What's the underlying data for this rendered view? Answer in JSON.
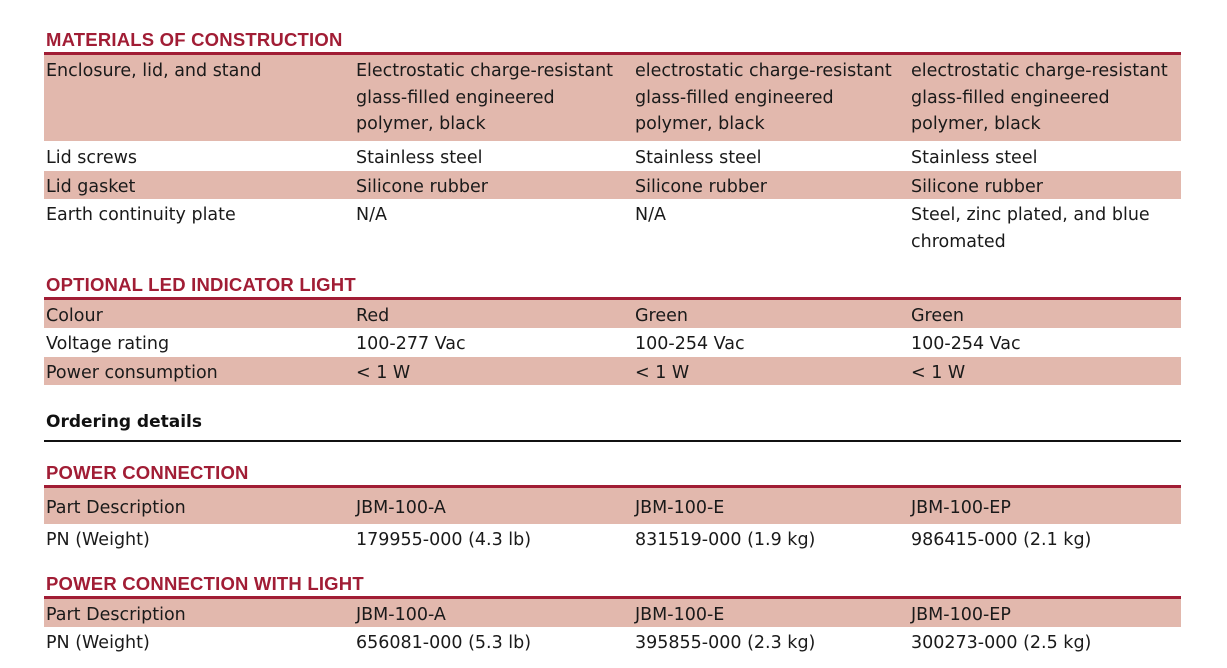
{
  "materials": {
    "title": "MATERIALS OF CONSTRUCTION",
    "rows": [
      {
        "label": "Enclosure, lid, and stand",
        "c1": [
          "Electrostatic charge-resistant",
          "glass-filled engineered",
          "polymer, black"
        ],
        "c2": [
          "electrostatic charge-resistant",
          "glass-filled engineered",
          "polymer, black"
        ],
        "c3": [
          "electrostatic charge-resistant",
          "glass-filled engineered",
          "polymer, black"
        ]
      },
      {
        "label": "Lid screws",
        "c1": [
          "Stainless steel"
        ],
        "c2": [
          "Stainless steel"
        ],
        "c3": [
          "Stainless steel"
        ]
      },
      {
        "label": "Lid gasket",
        "c1": [
          "Silicone rubber"
        ],
        "c2": [
          "Silicone rubber"
        ],
        "c3": [
          "Silicone rubber"
        ]
      },
      {
        "label": "Earth continuity plate",
        "c1": [
          "N/A"
        ],
        "c2": [
          "N/A"
        ],
        "c3": [
          "Steel, zinc plated, and blue",
          "chromated"
        ]
      }
    ]
  },
  "led": {
    "title": "OPTIONAL LED INDICATOR LIGHT",
    "rows": [
      {
        "label": "Colour",
        "c1": "Red",
        "c2": "Green",
        "c3": "Green"
      },
      {
        "label": "Voltage rating",
        "c1": "100-277 Vac",
        "c2": "100-254 Vac",
        "c3": "100-254 Vac"
      },
      {
        "label": "Power consumption",
        "c1": "< 1 W",
        "c2": "< 1 W",
        "c3": "< 1 W"
      }
    ]
  },
  "ordering_heading": "Ordering details",
  "power": {
    "title": "POWER CONNECTION",
    "rows": [
      {
        "label": "Part Description",
        "c1": "JBM-100-A",
        "c2": "JBM-100-E",
        "c3": "JBM-100-EP"
      },
      {
        "label": "PN (Weight)",
        "c1": "179955-000 (4.3 lb)",
        "c2": "831519-000 (1.9 kg)",
        "c3": "986415-000 (2.1 kg)"
      }
    ]
  },
  "power_light": {
    "title": "POWER CONNECTION WITH LIGHT",
    "rows": [
      {
        "label": "Part Description",
        "c1": "JBM-100-A",
        "c2": "JBM-100-E",
        "c3": "JBM-100-EP"
      },
      {
        "label": "PN (Weight)",
        "c1": "656081-000 (5.3 lb)",
        "c2": "395855-000 (2.3 kg)",
        "c3": "300273-000 (2.5 kg)"
      }
    ]
  },
  "colors": {
    "accent": "#a11d35",
    "row_shade": "#e2b8ad",
    "text": "#1a1a1a"
  }
}
